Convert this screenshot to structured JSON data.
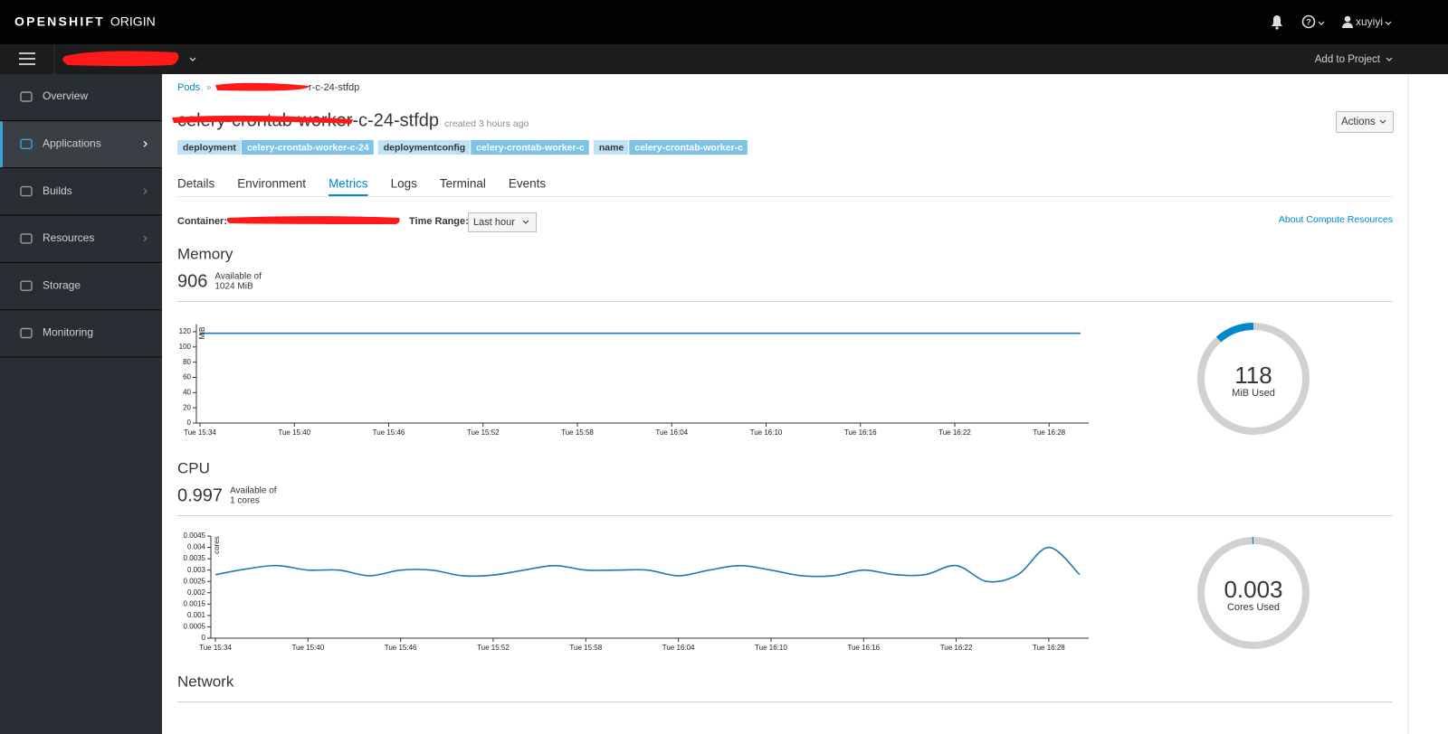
{
  "header": {
    "brand": "OPENSHIFT",
    "brand_suffix": "ORIGIN",
    "user": "xuyiyi",
    "add_to_project": "Add to Project"
  },
  "nav": [
    "Overview",
    "Applications",
    "Builds",
    "Resources",
    "Storage",
    "Monitoring"
  ],
  "breadcrumb": {
    "parent": "Pods",
    "current": "r-c-24-stfdp"
  },
  "pod": {
    "name": "celery-crontab-worker-c-24-stfdp",
    "created": "created 3 hours ago",
    "actions": "Actions"
  },
  "labels": [
    [
      "deployment",
      "celery-crontab-worker-c-24"
    ],
    [
      "deploymentconfig",
      "celery-crontab-worker-c"
    ],
    [
      "name",
      "celery-crontab-worker-c"
    ]
  ],
  "tabs": [
    "Details",
    "Environment",
    "Metrics",
    "Logs",
    "Terminal",
    "Events"
  ],
  "toolbar": {
    "container_label": "Container:",
    "time_range_label": "Time Range:",
    "time_range": "Last hour",
    "about": "About Compute Resources"
  },
  "memory": {
    "heading": "Memory",
    "available": 906,
    "available_of": "Available of",
    "limit": "1024 MiB",
    "used": 118,
    "used_label": "MiB Used",
    "chart": {
      "type": "line",
      "y_label": "MiB",
      "color": "#1f77b4",
      "x": [
        "Tue 15:34",
        "Tue 16:30"
      ],
      "values": [
        118,
        118
      ],
      "xlim": [
        "Tue 15:34",
        "Tue 16:30"
      ],
      "xticks": [
        "Tue 15:34",
        "Tue 15:40",
        "Tue 15:46",
        "Tue 15:52",
        "Tue 15:58",
        "Tue 16:04",
        "Tue 16:10",
        "Tue 16:16",
        "Tue 16:22",
        "Tue 16:28"
      ],
      "ylim": [
        0,
        130
      ],
      "yticks": [
        0,
        20,
        40,
        60,
        80,
        100,
        120
      ]
    }
  },
  "cpu": {
    "heading": "CPU",
    "available": 0.997,
    "available_of": "Available of",
    "limit": "1 cores",
    "used": 0.003,
    "used_label": "Cores Used",
    "chart": {
      "type": "line",
      "y_label": "cores",
      "color": "#1f77b4",
      "x": [
        "Tue 15:34",
        "Tue 15:36",
        "Tue 15:38",
        "Tue 15:40",
        "Tue 15:42",
        "Tue 15:44",
        "Tue 15:46",
        "Tue 15:48",
        "Tue 15:50",
        "Tue 15:52",
        "Tue 15:54",
        "Tue 15:56",
        "Tue 15:58",
        "Tue 16:00",
        "Tue 16:02",
        "Tue 16:04",
        "Tue 16:06",
        "Tue 16:08",
        "Tue 16:10",
        "Tue 16:12",
        "Tue 16:14",
        "Tue 16:16",
        "Tue 16:18",
        "Tue 16:20",
        "Tue 16:22",
        "Tue 16:24",
        "Tue 16:26",
        "Tue 16:28",
        "Tue 16:30"
      ],
      "values": [
        0.0028,
        0.00305,
        0.0032,
        0.003,
        0.003,
        0.00275,
        0.003,
        0.003,
        0.00275,
        0.00278,
        0.003,
        0.0032,
        0.003,
        0.003,
        0.003,
        0.00275,
        0.003,
        0.0032,
        0.003,
        0.00275,
        0.00275,
        0.003,
        0.0028,
        0.0028,
        0.0032,
        0.0025,
        0.0028,
        0.004,
        0.0028
      ],
      "xlim": [
        "Tue 15:34",
        "Tue 16:30"
      ],
      "xticks": [
        "Tue 15:34",
        "Tue 15:40",
        "Tue 15:46",
        "Tue 15:52",
        "Tue 15:58",
        "Tue 16:04",
        "Tue 16:10",
        "Tue 16:16",
        "Tue 16:22",
        "Tue 16:28"
      ],
      "ylim": [
        0,
        0.0045
      ],
      "yticks": [
        0,
        0.0005,
        0.001,
        0.0015,
        0.002,
        0.0025,
        0.003,
        0.0035,
        0.004,
        0.0045
      ]
    }
  },
  "network": {
    "heading": "Network"
  }
}
